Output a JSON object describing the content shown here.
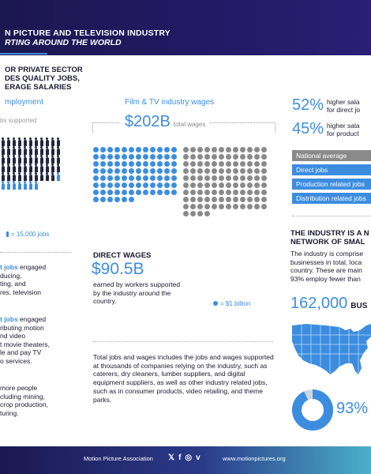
{
  "header": {
    "line1": "N PICTURE AND TELEVISION INDUSTRY",
    "line2": "RTING AROUND THE WORLD"
  },
  "left": {
    "heading_lines": [
      "OR PRIVATE SECTOR",
      "DES QUALITY JOBS,",
      "ERAGE SALARIES"
    ],
    "employment_title": "mployment",
    "jobs_supported_label": "bs supported",
    "person_legend": "= 15,000 jobs",
    "para1": [
      {
        "bold": "t jobs",
        "rest": " engaged"
      },
      {
        "text": "ducing,"
      },
      {
        "text": "ting, and"
      },
      {
        "text": "res, television"
      }
    ],
    "para2": [
      {
        "bold": "t jobs",
        "rest": " engaged"
      },
      {
        "text": "ributing motion"
      },
      {
        "text": "nd video"
      },
      {
        "text": "t movie theaters,"
      },
      {
        "text": "le and pay TV"
      },
      {
        "text": "o services."
      }
    ],
    "para3": [
      "more people",
      "cluding mining,",
      "crop production,",
      "turing."
    ]
  },
  "middle": {
    "title": "Film & TV industry wages",
    "total_value": "$202B",
    "total_label": "total wages",
    "direct_wages_label": "DIRECT WAGES",
    "direct_wages_value": "$90.5B",
    "direct_wages_desc": "earned by workers supported by the industry around the country.",
    "dot_legend": "= $1 billion",
    "paragraph": "Total jobs and wages includes the jobs and wages supported at thousands of companies relying on the industry, such as caterers, dry cleaners, lumber suppliers, and digital equipment suppliers, as well as other industry related jobs, such as in consumer products, video retailing, and theme parks."
  },
  "right": {
    "stats": [
      {
        "value": "52%",
        "line1": "higher sala",
        "line2": "for direct jo"
      },
      {
        "value": "45%",
        "line1": "higher sala",
        "line2": "for product"
      }
    ],
    "bars": [
      {
        "label": "National average",
        "color": "#8a8a8a"
      },
      {
        "label": "Direct jobs",
        "color": "#3c8de0"
      },
      {
        "label": "Production related jobs",
        "color": "#3c8de0"
      },
      {
        "label": "Distribution related jobs",
        "color": "#3c8de0"
      }
    ],
    "heading_lines": [
      "THE INDUSTRY IS A N",
      "NETWORK OF SMAL"
    ],
    "para_lines": [
      "The industry is comprise",
      "businesses in total, loca",
      "country. These are main",
      "93% employ fewer than"
    ],
    "businesses_value": "162,000",
    "businesses_label": "BUS",
    "small_pct": "93%",
    "small_pct_fraction": 0.93
  },
  "footer": {
    "org": "Motion Picture Association",
    "social_icons": [
      "x-icon",
      "facebook-icon",
      "instagram-icon",
      "vimeo-icon"
    ],
    "url": "www.motionpictures.org"
  },
  "colors": {
    "navy": "#1b1750",
    "blue": "#3c8de0",
    "gray": "#8a8a8a",
    "dark": "#24263f"
  },
  "dot_counts": {
    "direct_wages_dots": 90,
    "other_wages_dots": 112
  },
  "person_counts": {
    "dark": 54,
    "blue": 8
  }
}
